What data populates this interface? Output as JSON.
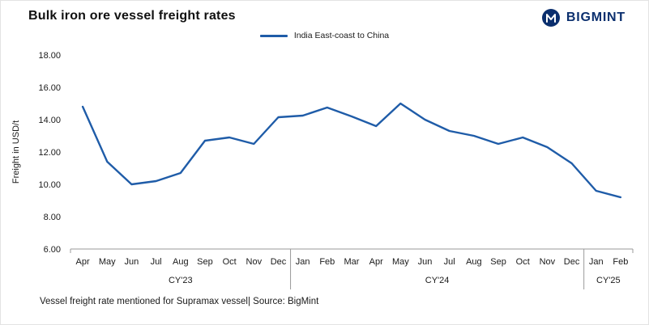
{
  "header": {
    "title": "Bulk iron ore vessel freight rates"
  },
  "brand": {
    "name": "BIGMINT",
    "color": "#0b2f6e"
  },
  "legend": {
    "label": "India East-coast to China"
  },
  "footer": {
    "note": "Vessel freight rate mentioned for Supramax vessel| Source: BigMint"
  },
  "chart_data": {
    "type": "line",
    "title": "Bulk iron ore vessel freight rates",
    "xlabel": "",
    "ylabel": "Freight in USD/t",
    "ylim": [
      6,
      18
    ],
    "yticks": [
      6,
      8,
      10,
      12,
      14,
      16,
      18
    ],
    "grid": false,
    "legend_position": "top",
    "categories": [
      "Apr",
      "May",
      "Jun",
      "Jul",
      "Aug",
      "Sep",
      "Oct",
      "Nov",
      "Dec",
      "Jan",
      "Feb",
      "Mar",
      "Apr",
      "May",
      "Jun",
      "Jul",
      "Aug",
      "Sep",
      "Oct",
      "Nov",
      "Dec",
      "Jan",
      "Feb"
    ],
    "groups": [
      {
        "label": "CY'23",
        "count": 9
      },
      {
        "label": "CY'24",
        "count": 12
      },
      {
        "label": "CY'25",
        "count": 2
      }
    ],
    "series": [
      {
        "name": "India East-coast to China",
        "color": "#1f5ca8",
        "values": [
          14.8,
          11.4,
          10.0,
          10.2,
          10.7,
          12.7,
          12.9,
          12.5,
          14.15,
          14.25,
          14.75,
          14.2,
          13.6,
          15.0,
          14.0,
          13.3,
          13.0,
          12.5,
          12.9,
          12.3,
          11.3,
          9.6,
          9.2
        ]
      }
    ]
  }
}
